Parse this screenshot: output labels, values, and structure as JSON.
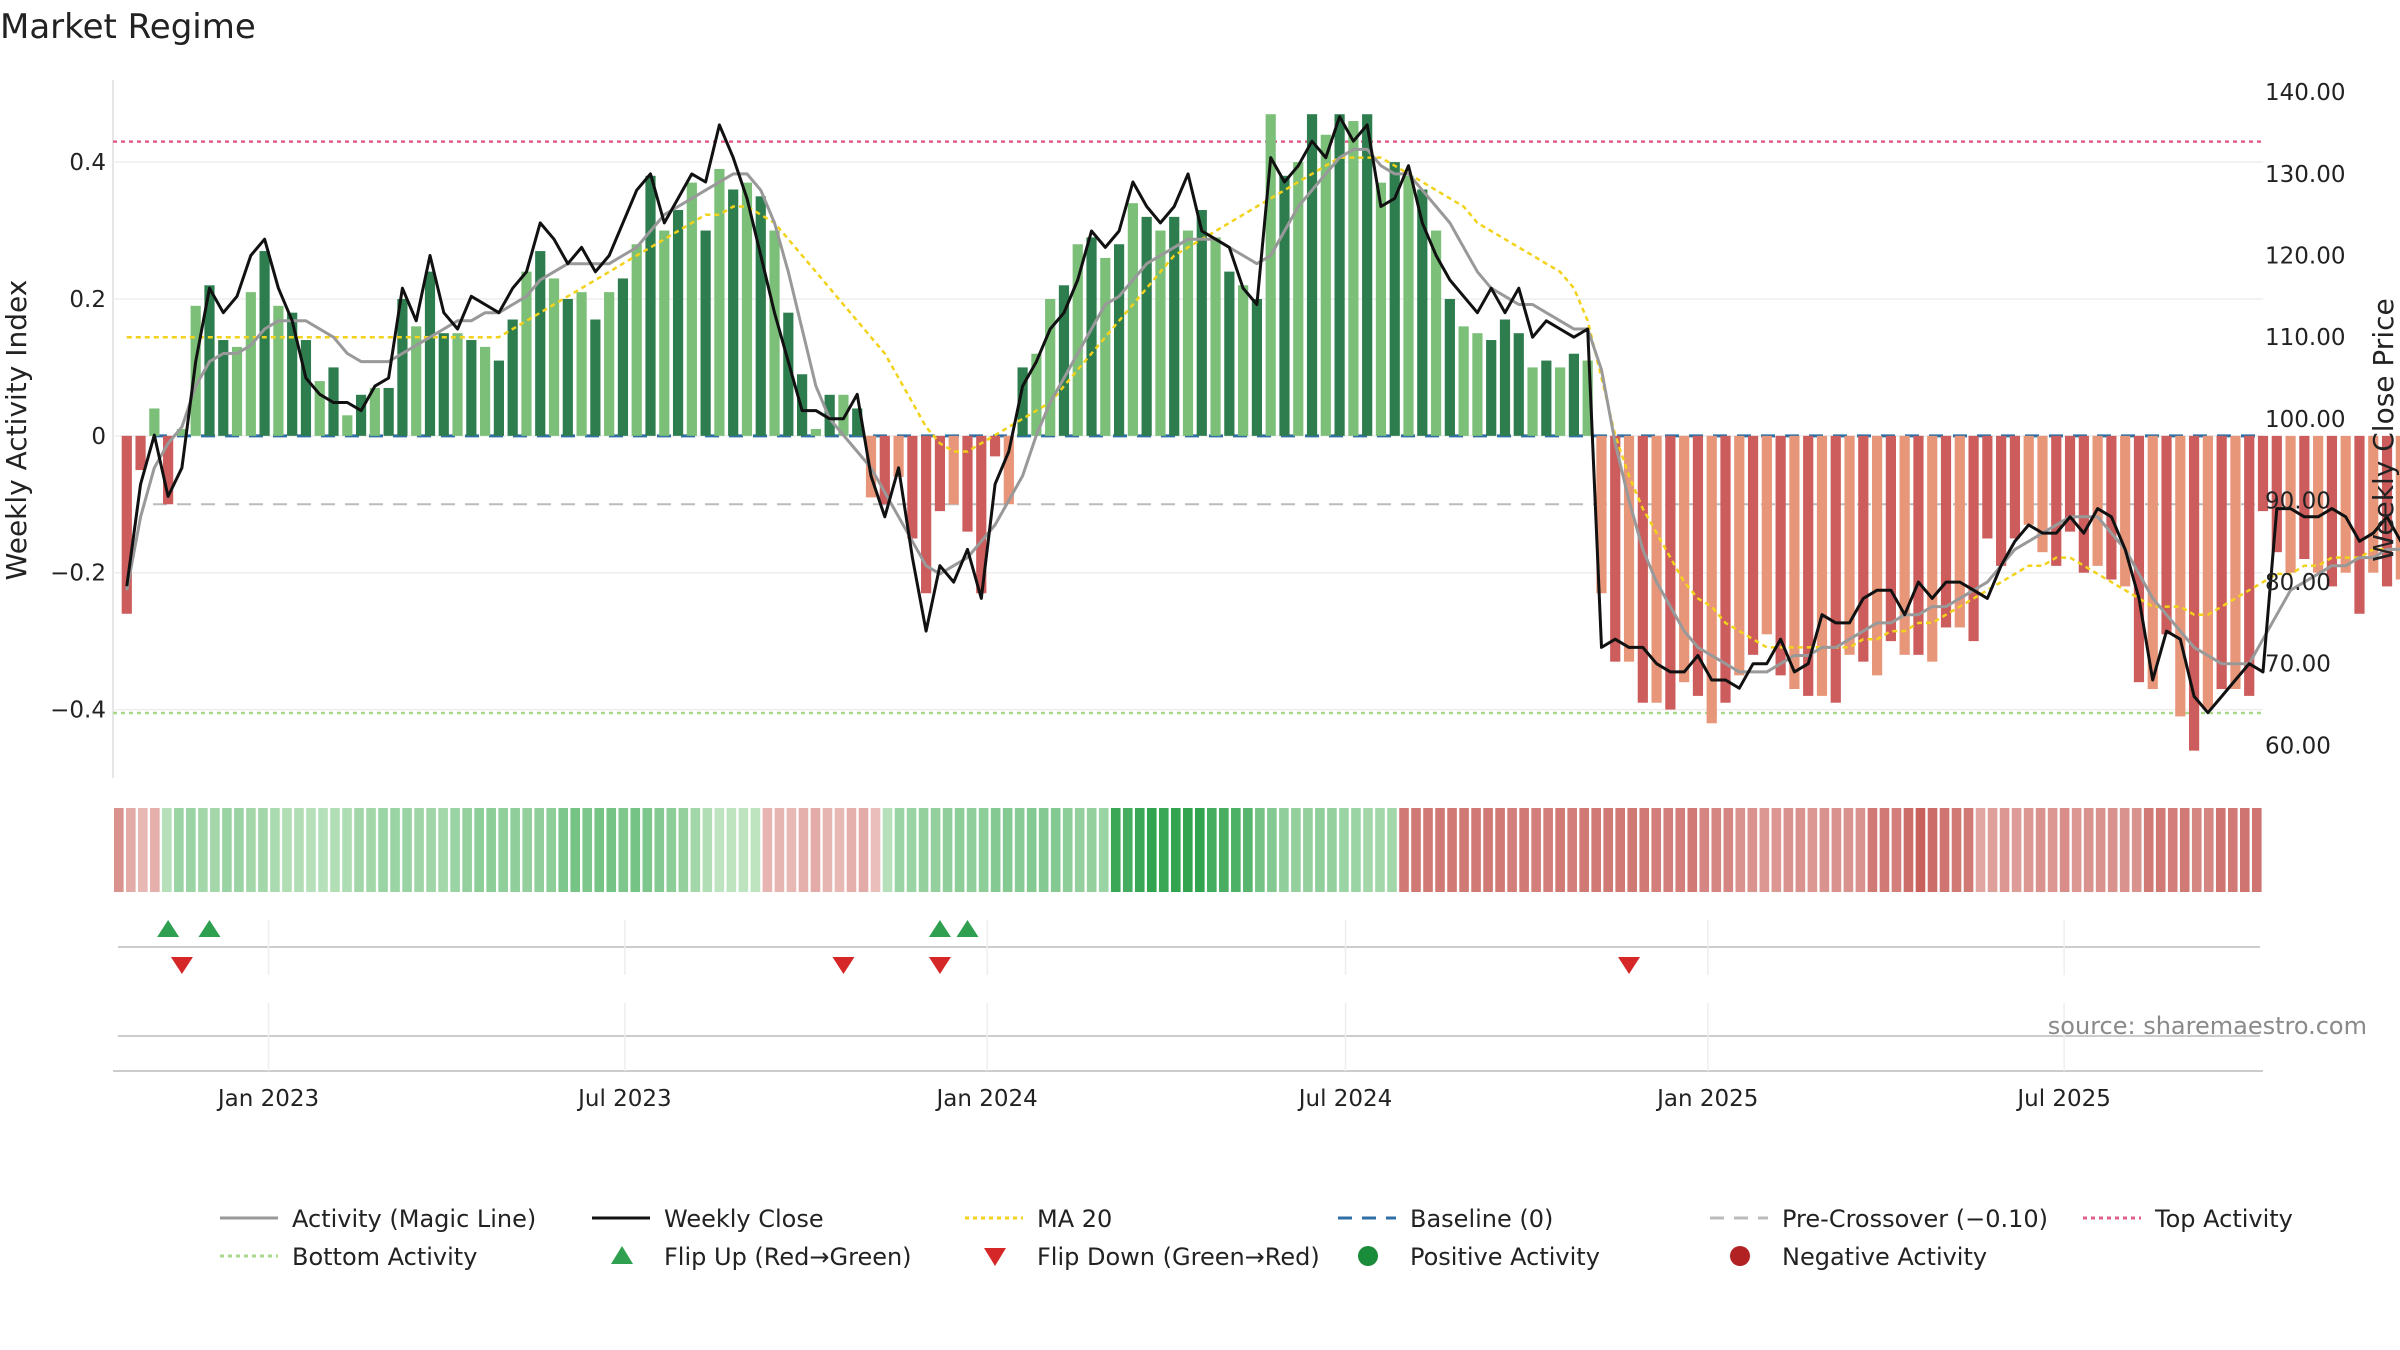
{
  "chart_data": {
    "type": "bar",
    "title": "Market Regime",
    "ylabel_left": "Weekly Activity Index",
    "ylabel_right": "Weekly Close Price",
    "source": "source: sharemaestro.com",
    "ylim_left": [
      -0.5,
      0.52
    ],
    "ylim_right": [
      56,
      141.5
    ],
    "yticks_left": [
      0.4,
      0.2,
      0,
      -0.2,
      -0.4
    ],
    "ytick_labels_left": [
      "0.4",
      "0.2",
      "0",
      "−0.2",
      "−0.4"
    ],
    "yticks_right": [
      140,
      130,
      120,
      110,
      100,
      90,
      80,
      70,
      60
    ],
    "ytick_labels_right": [
      "140.00",
      "130.00",
      "120.00",
      "110.00",
      "100.00",
      "90.00",
      "80.00",
      "70.00",
      "60.00"
    ],
    "xlim": [
      "2022-10-14",
      "2025-10-10"
    ],
    "xticks": [
      "2023-01-01",
      "2023-07-01",
      "2024-01-01",
      "2024-07-01",
      "2025-01-01",
      "2025-07-01"
    ],
    "xtick_labels": [
      "Jan 2023",
      "Jul 2023",
      "Jan 2024",
      "Jul 2024",
      "Jan 2025",
      "Jul 2025"
    ],
    "start_date": "2022-10-21",
    "week_step": 1,
    "reference_lines": {
      "top_activity": 0.43,
      "bottom_activity": -0.405,
      "pre_crossover": -0.1,
      "baseline": 0
    },
    "activity": [
      -0.26,
      -0.05,
      0.04,
      -0.1,
      0.01,
      0.19,
      0.22,
      0.14,
      0.13,
      0.21,
      0.27,
      0.19,
      0.18,
      0.14,
      0.08,
      0.1,
      0.03,
      0.06,
      0.07,
      0.07,
      0.2,
      0.16,
      0.24,
      0.15,
      0.15,
      0.14,
      0.13,
      0.11,
      0.17,
      0.24,
      0.27,
      0.23,
      0.2,
      0.21,
      0.17,
      0.21,
      0.23,
      0.28,
      0.38,
      0.3,
      0.33,
      0.37,
      0.3,
      0.39,
      0.36,
      0.37,
      0.35,
      0.3,
      0.18,
      0.09,
      0.01,
      0.06,
      0.06,
      0.04,
      -0.09,
      -0.1,
      -0.06,
      -0.15,
      -0.23,
      -0.11,
      -0.1,
      -0.14,
      -0.23,
      -0.03,
      -0.1,
      0.1,
      0.12,
      0.2,
      0.22,
      0.28,
      0.29,
      0.26,
      0.28,
      0.34,
      0.32,
      0.3,
      0.32,
      0.3,
      0.33,
      0.29,
      0.24,
      0.22,
      0.2,
      0.47,
      0.38,
      0.4,
      0.47,
      0.44,
      0.47,
      0.46,
      0.47,
      0.37,
      0.4,
      0.38,
      0.36,
      0.3,
      0.2,
      0.16,
      0.15,
      0.14,
      0.17,
      0.15,
      0.1,
      0.11,
      0.1,
      0.12,
      0.11,
      -0.23,
      -0.33,
      -0.33,
      -0.39,
      -0.39,
      -0.4,
      -0.36,
      -0.38,
      -0.42,
      -0.39,
      -0.35,
      -0.32,
      -0.29,
      -0.35,
      -0.37,
      -0.38,
      -0.38,
      -0.39,
      -0.32,
      -0.33,
      -0.35,
      -0.3,
      -0.32,
      -0.32,
      -0.33,
      -0.28,
      -0.28,
      -0.3,
      -0.15,
      -0.19,
      -0.15,
      -0.13,
      -0.17,
      -0.19,
      -0.14,
      -0.2,
      -0.19,
      -0.21,
      -0.22,
      -0.36,
      -0.37,
      -0.29,
      -0.41,
      -0.46,
      -0.4,
      -0.37,
      -0.37,
      -0.38,
      -0.11,
      -0.17,
      -0.2,
      -0.18,
      -0.2,
      -0.22,
      -0.2,
      -0.26,
      -0.2,
      -0.22,
      -0.21,
      -0.2,
      -0.21,
      -0.21,
      -0.33,
      -0.34,
      -0.3,
      -0.33,
      -0.25,
      -0.26,
      -0.39,
      -0.34,
      -0.38,
      -0.39
    ],
    "series": [
      {
        "name": "Weekly Close",
        "axis": "right",
        "values": [
          79.5,
          92,
          98,
          90.5,
          94,
          107,
          116,
          113,
          115,
          120,
          122,
          116,
          112,
          105,
          103,
          102,
          102,
          101,
          104,
          105,
          116,
          112,
          120,
          113,
          111,
          115,
          114,
          113,
          116,
          118,
          124,
          122,
          119,
          121,
          118,
          120,
          124,
          128,
          130,
          124,
          127,
          130,
          129,
          136,
          132,
          127,
          120,
          113,
          107,
          101,
          101,
          100,
          100,
          103,
          93,
          88,
          94,
          83,
          74,
          82,
          80,
          84,
          78,
          92,
          96,
          104,
          107,
          111,
          113,
          117,
          123,
          121,
          123,
          129,
          126,
          124,
          126,
          130,
          123,
          122,
          121,
          116,
          114,
          132,
          129,
          131,
          134,
          132,
          137,
          134,
          136,
          126,
          127,
          131,
          124,
          120,
          117,
          115,
          113,
          116,
          113,
          116,
          110,
          112,
          111,
          110,
          111,
          72,
          73,
          72,
          72,
          70,
          69,
          69,
          71,
          68,
          68,
          67,
          70,
          70,
          73,
          69,
          70,
          76,
          75,
          75,
          78,
          79,
          79,
          76,
          80,
          78,
          80,
          80,
          79,
          78,
          82,
          85,
          87,
          86,
          86,
          88,
          86,
          89,
          88,
          84,
          78,
          68,
          74,
          73,
          66,
          64,
          66,
          68,
          70,
          69,
          89,
          89,
          88,
          88,
          89,
          88,
          85,
          86,
          88,
          85,
          87,
          85,
          85,
          86,
          86,
          87,
          83,
          82,
          82,
          83,
          80,
          80,
          83,
          78,
          75
        ]
      },
      {
        "name": "Activity (Magic Line)",
        "axis": "right",
        "values": [
          79,
          88,
          94,
          97,
          99,
          104,
          107,
          108,
          108,
          109,
          111,
          112,
          112,
          112,
          111,
          110,
          108,
          107,
          107,
          107,
          108,
          109,
          110,
          111,
          112,
          112,
          113,
          113,
          114,
          115,
          117,
          118,
          119,
          119,
          119,
          119,
          120,
          121,
          123,
          125,
          126,
          127,
          128,
          129,
          130,
          130,
          128,
          124,
          118,
          111,
          104,
          100,
          98,
          96,
          94,
          91,
          88,
          85,
          82,
          81,
          82,
          83,
          85,
          87,
          90,
          93,
          98,
          102,
          105,
          108,
          111,
          114,
          115,
          117,
          119,
          120,
          121,
          122,
          122,
          122,
          121,
          120,
          119,
          120,
          123,
          126,
          128,
          130,
          132,
          133,
          133,
          131,
          130,
          130,
          128,
          126,
          124,
          121,
          118,
          116,
          115,
          114,
          114,
          113,
          112,
          111,
          111,
          106,
          97,
          90,
          84,
          80,
          77,
          74,
          72,
          71,
          70,
          69,
          69,
          69,
          70,
          71,
          71,
          72,
          72,
          73,
          74,
          75,
          75,
          76,
          76,
          77,
          77,
          78,
          79,
          80,
          82,
          84,
          85,
          86,
          87,
          88,
          88,
          88,
          86,
          84,
          81,
          78,
          76,
          74,
          72,
          71,
          70,
          70,
          70,
          73,
          76,
          79,
          80,
          81,
          82,
          82,
          83,
          83,
          84,
          84,
          84,
          85,
          85,
          85,
          85,
          85,
          84,
          83,
          82,
          81,
          80,
          79,
          78,
          77,
          76
        ]
      },
      {
        "name": "MA 20",
        "axis": "right",
        "values": [
          110,
          110,
          110,
          110,
          110,
          110,
          110,
          110,
          110,
          110,
          110,
          110,
          110,
          110,
          110,
          110,
          110,
          110,
          110,
          110,
          110,
          110,
          110,
          110,
          110,
          110,
          110,
          110,
          111,
          112,
          113,
          114,
          115,
          116,
          117,
          118,
          119,
          120,
          121,
          122,
          123,
          124,
          125,
          125,
          126,
          126,
          125,
          124,
          122,
          120,
          118,
          116,
          114,
          112,
          110,
          108,
          105,
          102,
          99,
          97,
          96,
          96,
          97,
          98,
          99,
          100,
          101,
          102,
          104,
          106,
          108,
          110,
          112,
          114,
          116,
          118,
          120,
          121,
          122,
          123,
          124,
          125,
          126,
          127,
          128,
          129,
          130,
          131,
          132,
          132,
          132,
          132,
          131,
          130,
          129,
          128,
          127,
          126,
          124,
          123,
          122,
          121,
          120,
          119,
          118,
          116,
          112,
          105,
          98,
          93,
          89,
          86,
          83,
          80,
          78,
          77,
          75,
          74,
          73,
          72,
          72,
          72,
          72,
          72,
          72,
          72,
          73,
          73,
          74,
          74,
          75,
          75,
          76,
          77,
          78,
          79,
          80,
          81,
          82,
          82,
          83,
          83,
          82,
          81,
          80,
          79,
          78,
          77,
          77,
          77,
          76,
          76,
          77,
          78,
          79,
          80,
          81,
          81,
          82,
          82,
          83,
          83,
          83,
          84,
          84,
          84,
          84,
          84,
          84,
          83,
          83,
          83,
          82,
          82,
          82,
          81,
          81,
          81,
          80,
          80,
          79
        ]
      }
    ],
    "regime_strip": [
      -0.2,
      -0.1,
      -0.05,
      -0.08,
      0.05,
      0.12,
      0.12,
      0.1,
      0.1,
      0.12,
      0.12,
      0.1,
      0.1,
      0.08,
      0.06,
      0.06,
      0.05,
      0.05,
      0.06,
      0.07,
      0.1,
      0.1,
      0.12,
      0.12,
      0.12,
      0.11,
      0.11,
      0.1,
      0.12,
      0.14,
      0.16,
      0.16,
      0.15,
      0.15,
      0.14,
      0.15,
      0.16,
      0.2,
      0.22,
      0.2,
      0.22,
      0.22,
      0.2,
      0.22,
      0.2,
      0.18,
      0.16,
      0.14,
      0.1,
      0.06,
      0.03,
      0.03,
      0.03,
      0.03,
      -0.06,
      -0.06,
      -0.05,
      -0.08,
      -0.1,
      -0.06,
      -0.05,
      -0.08,
      -0.1,
      -0.02,
      0.05,
      0.12,
      0.12,
      0.14,
      0.14,
      0.15,
      0.16,
      0.15,
      0.16,
      0.18,
      0.18,
      0.17,
      0.18,
      0.18,
      0.18,
      0.16,
      0.14,
      0.14,
      0.12,
      0.38,
      0.35,
      0.38,
      0.4,
      0.38,
      0.4,
      0.4,
      0.4,
      0.35,
      0.34,
      0.33,
      0.3,
      0.22,
      0.18,
      0.15,
      0.14,
      0.14,
      0.15,
      0.14,
      0.12,
      0.12,
      0.1,
      0.1,
      0.1,
      -0.3,
      -0.3,
      -0.3,
      -0.3,
      -0.3,
      -0.3,
      -0.3,
      -0.3,
      -0.3,
      -0.28,
      -0.3,
      -0.28,
      -0.28,
      -0.3,
      -0.28,
      -0.3,
      -0.3,
      -0.3,
      -0.3,
      -0.3,
      -0.3,
      -0.28,
      -0.28,
      -0.28,
      -0.3,
      -0.25,
      -0.25,
      -0.25,
      -0.2,
      -0.2,
      -0.18,
      -0.18,
      -0.2,
      -0.2,
      -0.18,
      -0.2,
      -0.2,
      -0.2,
      -0.2,
      -0.3,
      -0.3,
      -0.28,
      -0.35,
      -0.4,
      -0.35,
      -0.32,
      -0.3,
      -0.3,
      -0.12,
      -0.15,
      -0.18,
      -0.16,
      -0.18,
      -0.2,
      -0.18,
      -0.22,
      -0.18,
      -0.2,
      -0.2,
      -0.2,
      -0.2,
      -0.2,
      -0.3,
      -0.3,
      -0.28,
      -0.3,
      -0.25,
      -0.25,
      -0.32,
      -0.3,
      -0.32,
      -0.32
    ],
    "flip_up_weeks": [
      3,
      6,
      59,
      61
    ],
    "flip_down_weeks": [
      4,
      52,
      59,
      109
    ],
    "colors": {
      "pos_strong": "#2e7d4f",
      "pos_light": "#7bbf78",
      "neg_strong": "#cd5c5c",
      "neg_light": "#e8967a",
      "magic_line": "#999999",
      "weekly_close": "#111111",
      "ma20": "#f2d21b",
      "baseline": "#2f6fa5",
      "pre_crossover": "#bbbbbb",
      "top_activity": "#e0608a",
      "bottom_activity": "#a8d88a",
      "flip_up": "#2ea04f",
      "flip_down": "#d62728",
      "positive_dot": "#1a8c3a",
      "negative_dot": "#b22222"
    }
  },
  "legend": [
    {
      "label": "Activity (Magic Line)",
      "kind": "line",
      "color": "#999999",
      "dash": ""
    },
    {
      "label": "Weekly Close",
      "kind": "line",
      "color": "#111111",
      "dash": ""
    },
    {
      "label": "MA 20",
      "kind": "line",
      "color": "#f2d21b",
      "dash": "4,4"
    },
    {
      "label": "Baseline (0)",
      "kind": "line",
      "color": "#2f6fa5",
      "dash": "14,10"
    },
    {
      "label": "Pre-Crossover (−0.10)",
      "kind": "line",
      "color": "#bbbbbb",
      "dash": "14,10"
    },
    {
      "label": "Top Activity",
      "kind": "line",
      "color": "#e0608a",
      "dash": "4,4"
    },
    {
      "label": "Bottom Activity",
      "kind": "line",
      "color": "#a8d88a",
      "dash": "4,4"
    },
    {
      "label": "Flip Up (Red→Green)",
      "kind": "up",
      "color": "#2ea04f",
      "dash": ""
    },
    {
      "label": "Flip Down (Green→Red)",
      "kind": "down",
      "color": "#d62728",
      "dash": ""
    },
    {
      "label": "Positive Activity",
      "kind": "dot",
      "color": "#1a8c3a",
      "dash": ""
    },
    {
      "label": "Negative Activity",
      "kind": "dot",
      "color": "#b22222",
      "dash": ""
    }
  ]
}
